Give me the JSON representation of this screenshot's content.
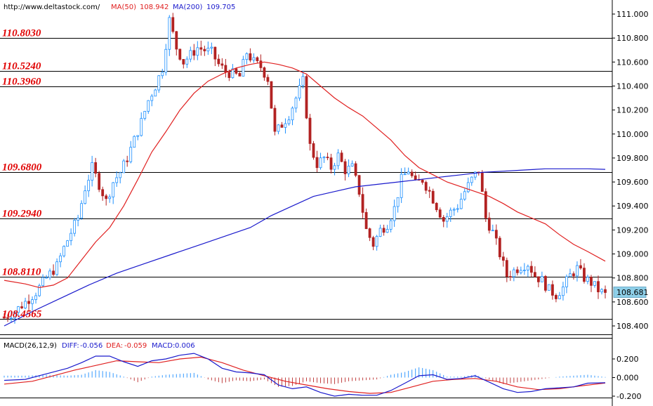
{
  "header": {
    "url": "http://www.deltastock.com/",
    "ma50_label": "MA(50)",
    "ma50_value": "108.942",
    "ma200_label": "MA(200)",
    "ma200_value": "109.705"
  },
  "macd_header": {
    "label": "MACD(26,12,9)",
    "diff_label": "DIFF:",
    "diff_value": "-0.056",
    "dea_label": "DEA:",
    "dea_value": "-0.059",
    "macd_label": "MACD:",
    "macd_value": "0.006"
  },
  "colors": {
    "candle": "#1e90ff",
    "candle_down": "#b22222",
    "ma50": "#e02020",
    "ma200": "#1a1acc",
    "level_text": "#e00000",
    "dea": "#e02020",
    "diff": "#1a1acc",
    "hist_up": "#3399ff",
    "hist_down": "#c04040",
    "price_box": "#8ecfe8"
  },
  "chart_data": [
    {
      "type": "candlestick",
      "ylim": [
        108.3,
        111.08
      ],
      "y_ticks": [
        "111.000",
        "110.800",
        "110.600",
        "110.400",
        "110.200",
        "110.000",
        "109.800",
        "109.600",
        "109.400",
        "109.200",
        "109.000",
        "108.800",
        "108.600",
        "108.400"
      ],
      "last_price": "108.681",
      "levels": [
        {
          "value": 110.803,
          "label": "110.8030"
        },
        {
          "value": 110.524,
          "label": "110.5240"
        },
        {
          "value": 110.396,
          "label": "110.3960"
        },
        {
          "value": 109.68,
          "label": "109.6800"
        },
        {
          "value": 109.294,
          "label": "109.2940"
        },
        {
          "value": 108.811,
          "label": "108.8110"
        },
        {
          "value": 108.4565,
          "label": "108.4565"
        }
      ],
      "close_path": [
        [
          0,
          108.47
        ],
        [
          3,
          108.52
        ],
        [
          6,
          108.6
        ],
        [
          9,
          108.68
        ],
        [
          12,
          108.8
        ],
        [
          15,
          108.9
        ],
        [
          17,
          109.05
        ],
        [
          19,
          109.18
        ],
        [
          21,
          109.3
        ],
        [
          23,
          109.55
        ],
        [
          25,
          109.72
        ],
        [
          27,
          109.58
        ],
        [
          29,
          109.44
        ],
        [
          31,
          109.6
        ],
        [
          33,
          109.68
        ],
        [
          35,
          109.8
        ],
        [
          37,
          109.95
        ],
        [
          39,
          110.1
        ],
        [
          41,
          110.28
        ],
        [
          43,
          110.4
        ],
        [
          45,
          110.55
        ],
        [
          47,
          110.95
        ],
        [
          49,
          110.72
        ],
        [
          51,
          110.6
        ],
        [
          53,
          110.66
        ],
        [
          55,
          110.72
        ],
        [
          57,
          110.7
        ],
        [
          59,
          110.68
        ],
        [
          61,
          110.58
        ],
        [
          63,
          110.52
        ],
        [
          65,
          110.5
        ],
        [
          67,
          110.48
        ],
        [
          69,
          110.68
        ],
        [
          71,
          110.6
        ],
        [
          73,
          110.56
        ],
        [
          75,
          110.46
        ],
        [
          77,
          110.0
        ],
        [
          79,
          110.08
        ],
        [
          81,
          110.16
        ],
        [
          83,
          110.3
        ],
        [
          85,
          110.44
        ],
        [
          87,
          109.9
        ],
        [
          89,
          109.75
        ],
        [
          91,
          109.8
        ],
        [
          93,
          109.72
        ],
        [
          95,
          109.82
        ],
        [
          97,
          109.7
        ],
        [
          99,
          109.72
        ],
        [
          101,
          109.52
        ],
        [
          103,
          109.2
        ],
        [
          105,
          109.08
        ],
        [
          107,
          109.2
        ],
        [
          109,
          109.25
        ],
        [
          111,
          109.38
        ],
        [
          113,
          109.62
        ],
        [
          115,
          109.7
        ],
        [
          117,
          109.58
        ],
        [
          119,
          109.62
        ],
        [
          121,
          109.52
        ],
        [
          123,
          109.4
        ],
        [
          125,
          109.28
        ],
        [
          127,
          109.35
        ],
        [
          129,
          109.4
        ],
        [
          131,
          109.52
        ],
        [
          133,
          109.62
        ],
        [
          135,
          109.7
        ],
        [
          137,
          109.3
        ],
        [
          139,
          109.18
        ],
        [
          141,
          109.0
        ],
        [
          143,
          108.82
        ],
        [
          145,
          108.86
        ],
        [
          147,
          108.9
        ],
        [
          149,
          108.92
        ],
        [
          151,
          108.82
        ],
        [
          153,
          108.78
        ],
        [
          155,
          108.7
        ],
        [
          157,
          108.66
        ],
        [
          159,
          108.72
        ],
        [
          161,
          108.82
        ],
        [
          163,
          108.88
        ],
        [
          165,
          108.8
        ],
        [
          167,
          108.76
        ],
        [
          169,
          108.7
        ],
        [
          171,
          108.66
        ]
      ],
      "ma50": [
        [
          0,
          108.78
        ],
        [
          6,
          108.75
        ],
        [
          10,
          108.72
        ],
        [
          14,
          108.74
        ],
        [
          18,
          108.8
        ],
        [
          22,
          108.95
        ],
        [
          26,
          109.1
        ],
        [
          30,
          109.22
        ],
        [
          34,
          109.4
        ],
        [
          38,
          109.62
        ],
        [
          42,
          109.85
        ],
        [
          46,
          110.02
        ],
        [
          50,
          110.2
        ],
        [
          54,
          110.34
        ],
        [
          58,
          110.44
        ],
        [
          62,
          110.5
        ],
        [
          66,
          110.55
        ],
        [
          70,
          110.58
        ],
        [
          74,
          110.6
        ],
        [
          78,
          110.58
        ],
        [
          82,
          110.55
        ],
        [
          86,
          110.5
        ],
        [
          90,
          110.4
        ],
        [
          94,
          110.3
        ],
        [
          98,
          110.22
        ],
        [
          102,
          110.15
        ],
        [
          106,
          110.05
        ],
        [
          110,
          109.95
        ],
        [
          114,
          109.82
        ],
        [
          118,
          109.72
        ],
        [
          122,
          109.66
        ],
        [
          126,
          109.6
        ],
        [
          130,
          109.56
        ],
        [
          134,
          109.52
        ],
        [
          138,
          109.48
        ],
        [
          142,
          109.42
        ],
        [
          146,
          109.35
        ],
        [
          150,
          109.3
        ],
        [
          154,
          109.25
        ],
        [
          158,
          109.16
        ],
        [
          162,
          109.08
        ],
        [
          166,
          109.02
        ],
        [
          171,
          108.94
        ]
      ],
      "ma200": [
        [
          0,
          108.4
        ],
        [
          8,
          108.52
        ],
        [
          16,
          108.63
        ],
        [
          24,
          108.74
        ],
        [
          32,
          108.84
        ],
        [
          40,
          108.92
        ],
        [
          48,
          109.0
        ],
        [
          56,
          109.08
        ],
        [
          64,
          109.16
        ],
        [
          70,
          109.22
        ],
        [
          76,
          109.32
        ],
        [
          82,
          109.4
        ],
        [
          88,
          109.48
        ],
        [
          94,
          109.52
        ],
        [
          100,
          109.56
        ],
        [
          106,
          109.58
        ],
        [
          112,
          109.6
        ],
        [
          118,
          109.62
        ],
        [
          124,
          109.64
        ],
        [
          130,
          109.66
        ],
        [
          136,
          109.68
        ],
        [
          142,
          109.69
        ],
        [
          148,
          109.7
        ],
        [
          154,
          109.71
        ],
        [
          160,
          109.71
        ],
        [
          166,
          109.71
        ],
        [
          171,
          109.705
        ]
      ]
    },
    {
      "type": "macd",
      "ylim": [
        -0.25,
        0.26
      ],
      "y_ticks": [
        "0.200",
        "0.000",
        "-0.200"
      ],
      "diff": [
        [
          0,
          -0.03
        ],
        [
          6,
          -0.02
        ],
        [
          12,
          0.04
        ],
        [
          18,
          0.1
        ],
        [
          22,
          0.16
        ],
        [
          26,
          0.23
        ],
        [
          30,
          0.23
        ],
        [
          34,
          0.17
        ],
        [
          38,
          0.12
        ],
        [
          42,
          0.18
        ],
        [
          46,
          0.2
        ],
        [
          50,
          0.24
        ],
        [
          54,
          0.26
        ],
        [
          58,
          0.2
        ],
        [
          62,
          0.1
        ],
        [
          66,
          0.06
        ],
        [
          70,
          0.05
        ],
        [
          74,
          0.03
        ],
        [
          78,
          -0.08
        ],
        [
          82,
          -0.12
        ],
        [
          86,
          -0.1
        ],
        [
          90,
          -0.16
        ],
        [
          94,
          -0.2
        ],
        [
          98,
          -0.18
        ],
        [
          102,
          -0.19
        ],
        [
          106,
          -0.19
        ],
        [
          110,
          -0.14
        ],
        [
          114,
          -0.06
        ],
        [
          118,
          0.02
        ],
        [
          122,
          0.03
        ],
        [
          126,
          -0.02
        ],
        [
          130,
          -0.01
        ],
        [
          134,
          0.02
        ],
        [
          138,
          -0.05
        ],
        [
          142,
          -0.12
        ],
        [
          146,
          -0.16
        ],
        [
          150,
          -0.15
        ],
        [
          154,
          -0.12
        ],
        [
          158,
          -0.11
        ],
        [
          162,
          -0.1
        ],
        [
          166,
          -0.06
        ],
        [
          171,
          -0.056
        ]
      ],
      "dea": [
        [
          0,
          -0.07
        ],
        [
          8,
          -0.04
        ],
        [
          14,
          0.02
        ],
        [
          20,
          0.08
        ],
        [
          26,
          0.13
        ],
        [
          32,
          0.18
        ],
        [
          38,
          0.17
        ],
        [
          44,
          0.16
        ],
        [
          50,
          0.2
        ],
        [
          56,
          0.22
        ],
        [
          62,
          0.16
        ],
        [
          68,
          0.08
        ],
        [
          74,
          0.02
        ],
        [
          80,
          -0.04
        ],
        [
          86,
          -0.08
        ],
        [
          92,
          -0.12
        ],
        [
          98,
          -0.15
        ],
        [
          104,
          -0.17
        ],
        [
          110,
          -0.16
        ],
        [
          116,
          -0.1
        ],
        [
          122,
          -0.04
        ],
        [
          128,
          -0.02
        ],
        [
          134,
          -0.01
        ],
        [
          140,
          -0.04
        ],
        [
          146,
          -0.1
        ],
        [
          152,
          -0.13
        ],
        [
          158,
          -0.12
        ],
        [
          164,
          -0.09
        ],
        [
          171,
          -0.059
        ]
      ],
      "histogram": [
        [
          0,
          0.02
        ],
        [
          6,
          0.02
        ],
        [
          12,
          0.03
        ],
        [
          18,
          0.02
        ],
        [
          22,
          0.03
        ],
        [
          26,
          0.08
        ],
        [
          30,
          0.06
        ],
        [
          34,
          0.01
        ],
        [
          38,
          -0.05
        ],
        [
          42,
          0.01
        ],
        [
          46,
          0.03
        ],
        [
          50,
          0.04
        ],
        [
          54,
          0.05
        ],
        [
          58,
          -0.02
        ],
        [
          62,
          -0.06
        ],
        [
          66,
          -0.03
        ],
        [
          70,
          -0.04
        ],
        [
          74,
          -0.02
        ],
        [
          78,
          -0.1
        ],
        [
          82,
          -0.09
        ],
        [
          86,
          -0.04
        ],
        [
          90,
          -0.06
        ],
        [
          94,
          -0.07
        ],
        [
          98,
          -0.04
        ],
        [
          102,
          -0.03
        ],
        [
          106,
          -0.02
        ],
        [
          110,
          0.03
        ],
        [
          114,
          0.06
        ],
        [
          118,
          0.11
        ],
        [
          122,
          0.08
        ],
        [
          126,
          0.01
        ],
        [
          130,
          0.01
        ],
        [
          134,
          0.03
        ],
        [
          138,
          -0.02
        ],
        [
          142,
          -0.07
        ],
        [
          146,
          -0.05
        ],
        [
          150,
          -0.03
        ],
        [
          154,
          -0.01
        ],
        [
          158,
          0.01
        ],
        [
          162,
          0.02
        ],
        [
          166,
          0.03
        ],
        [
          171,
          0.006
        ]
      ]
    }
  ]
}
